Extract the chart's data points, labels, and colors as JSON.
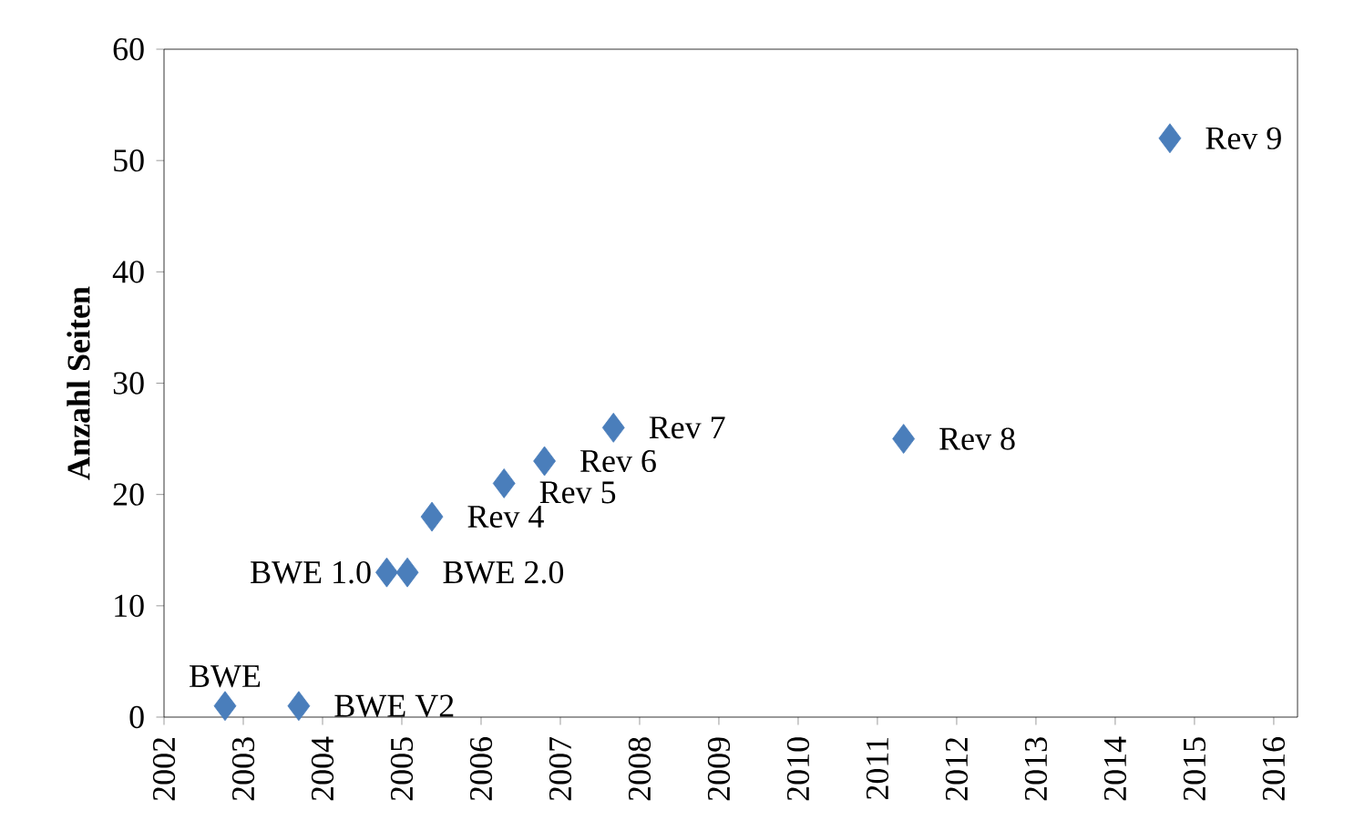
{
  "chart_data": {
    "type": "scatter",
    "ylabel": "Anzahl Seiten",
    "marker": "diamond",
    "color": "#4a7ebb",
    "x": [
      2002.77,
      2003.7,
      2004.81,
      2005.07,
      2005.38,
      2006.29,
      2006.8,
      2007.67,
      2011.33,
      2014.69
    ],
    "values": [
      1,
      1,
      13,
      13,
      18,
      21,
      23,
      26,
      25,
      52
    ],
    "xlim": [
      2002,
      2016.3
    ],
    "xticks": [
      2002,
      2003,
      2004,
      2005,
      2006,
      2007,
      2008,
      2009,
      2010,
      2011,
      2012,
      2013,
      2014,
      2015,
      2016
    ],
    "ylim": [
      0,
      60
    ],
    "yticks": [
      0,
      10,
      20,
      30,
      40,
      50,
      60
    ],
    "grid": false,
    "annotations": [
      {
        "text": "BWE",
        "x": 2002.77,
        "y": 1
      },
      {
        "text": "BWE V2",
        "x": 2003.7,
        "y": 1
      },
      {
        "text": "BWE 1.0",
        "x": 2004.81,
        "y": 13
      },
      {
        "text": "BWE 2.0",
        "x": 2005.07,
        "y": 13
      },
      {
        "text": "Rev 4",
        "x": 2005.38,
        "y": 18
      },
      {
        "text": "Rev 5",
        "x": 2006.29,
        "y": 21
      },
      {
        "text": "Rev 6",
        "x": 2006.8,
        "y": 23
      },
      {
        "text": "Rev 7",
        "x": 2007.67,
        "y": 26
      },
      {
        "text": "Rev 8",
        "x": 2011.33,
        "y": 25
      },
      {
        "text": "Rev 9",
        "x": 2014.69,
        "y": 52
      }
    ]
  }
}
